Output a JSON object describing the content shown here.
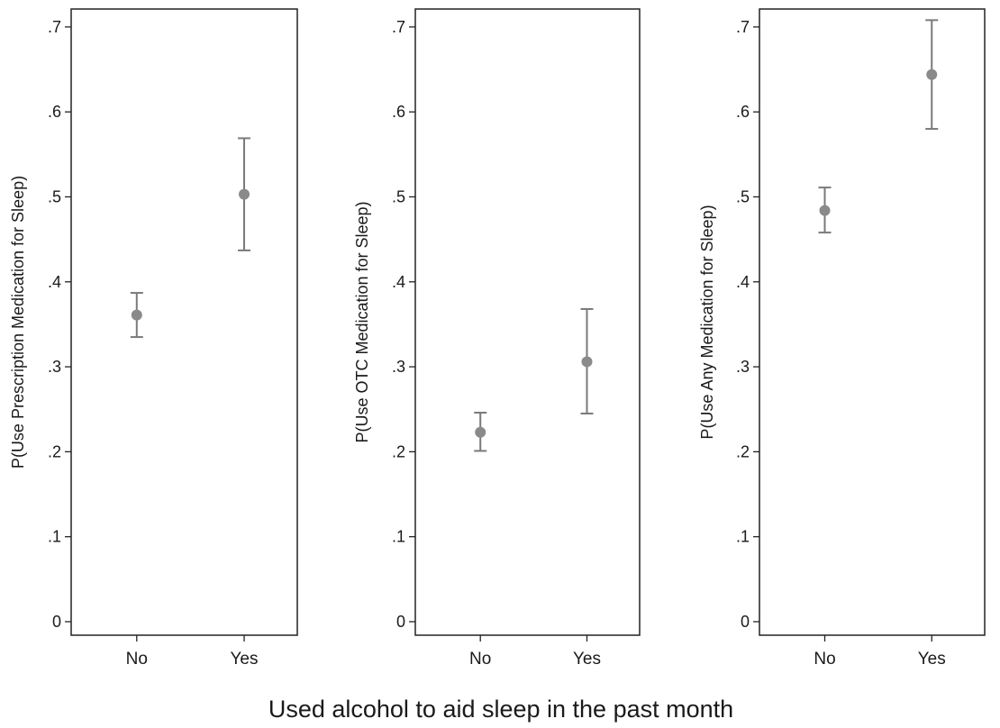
{
  "chart_data": [
    {
      "type": "scatter",
      "categories": [
        "No",
        "Yes"
      ],
      "points": [
        {
          "x": "No",
          "y": 0.361,
          "ci_low": 0.335,
          "ci_high": 0.387
        },
        {
          "x": "Yes",
          "y": 0.503,
          "ci_low": 0.437,
          "ci_high": 0.569
        }
      ],
      "ylabel": "P(Use Prescription Medication for Sleep)",
      "ylim": [
        0,
        0.72
      ],
      "yticks": [
        0,
        0.1,
        0.2,
        0.3,
        0.4,
        0.5,
        0.6,
        0.7
      ],
      "ytick_labels": [
        "0",
        ".1",
        ".2",
        ".3",
        ".4",
        ".5",
        ".6",
        ".7"
      ],
      "grid": false
    },
    {
      "type": "scatter",
      "categories": [
        "No",
        "Yes"
      ],
      "points": [
        {
          "x": "No",
          "y": 0.223,
          "ci_low": 0.201,
          "ci_high": 0.246
        },
        {
          "x": "Yes",
          "y": 0.306,
          "ci_low": 0.245,
          "ci_high": 0.368
        }
      ],
      "ylabel": "P(Use OTC Medication for Sleep)",
      "ylim": [
        0,
        0.72
      ],
      "yticks": [
        0,
        0.1,
        0.2,
        0.3,
        0.4,
        0.5,
        0.6,
        0.7
      ],
      "ytick_labels": [
        "0",
        ".1",
        ".2",
        ".3",
        ".4",
        ".5",
        ".6",
        ".7"
      ],
      "grid": false
    },
    {
      "type": "scatter",
      "categories": [
        "No",
        "Yes"
      ],
      "points": [
        {
          "x": "No",
          "y": 0.484,
          "ci_low": 0.458,
          "ci_high": 0.511
        },
        {
          "x": "Yes",
          "y": 0.644,
          "ci_low": 0.58,
          "ci_high": 0.708
        }
      ],
      "ylabel": "P(Use Any Medication for Sleep)",
      "ylim": [
        0,
        0.72
      ],
      "yticks": [
        0,
        0.1,
        0.2,
        0.3,
        0.4,
        0.5,
        0.6,
        0.7
      ],
      "ytick_labels": [
        "0",
        ".1",
        ".2",
        ".3",
        ".4",
        ".5",
        ".6",
        ".7"
      ],
      "grid": false
    }
  ],
  "xlabel": "Used alcohol to aid sleep in the past month",
  "colors": {
    "marker": "#8a8a8a",
    "errorbar": "#7a7a7a",
    "axis": "#222222"
  }
}
